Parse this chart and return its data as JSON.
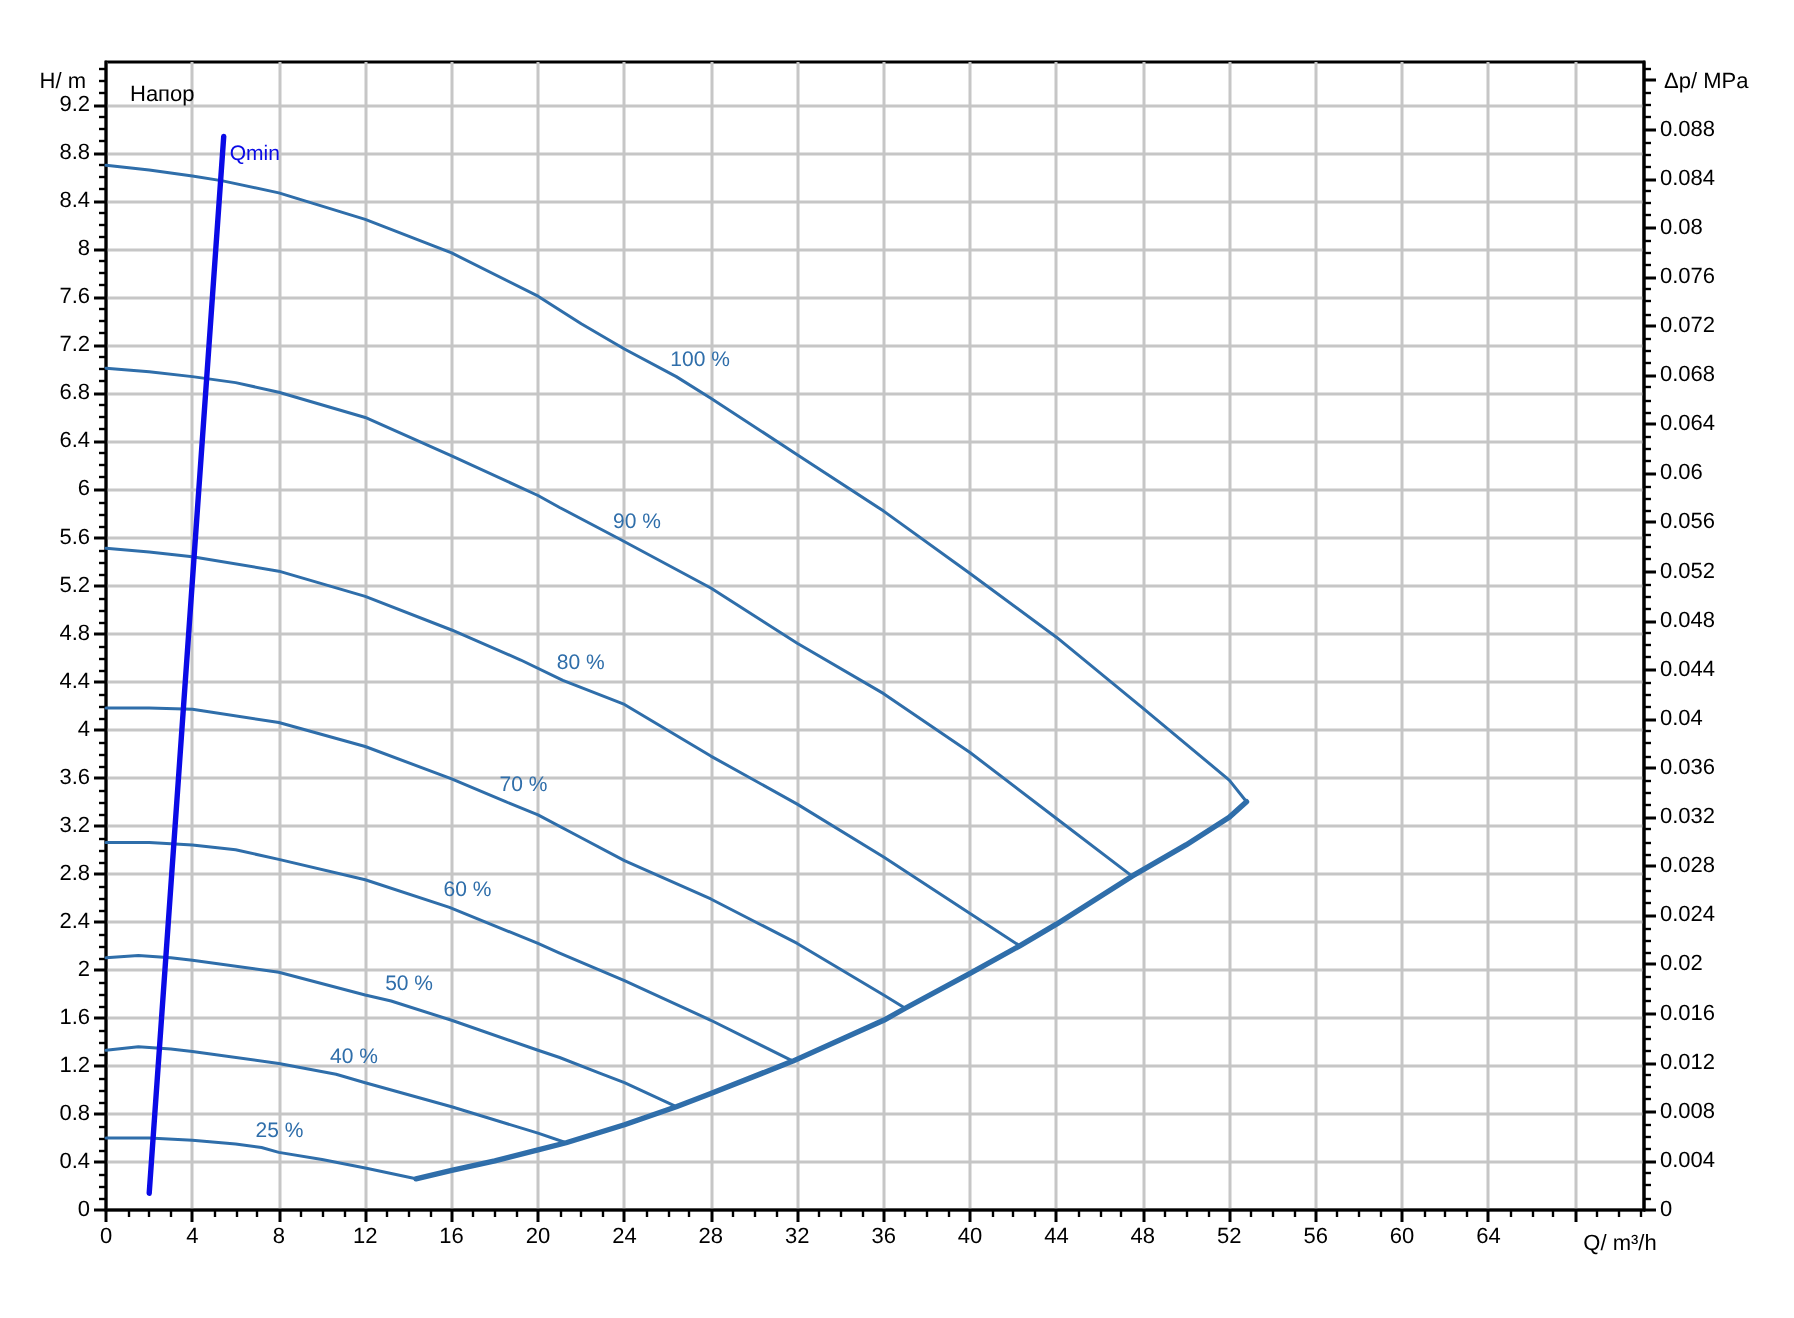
{
  "chart_data": {
    "type": "line",
    "title": "Напор",
    "xlabel": "Q/ m³/h",
    "ylabel": "H/ m",
    "y2label": "Δp/ MPa",
    "xlim": [
      0,
      71.2
    ],
    "xticks": [
      0,
      4,
      8,
      12,
      16,
      20,
      24,
      28,
      32,
      36,
      40,
      44,
      48,
      52,
      56,
      60,
      64,
      {
        "value": 68,
        "label": null
      }
    ],
    "ylim": [
      0,
      9.56
    ],
    "yticks": [
      0,
      0.4,
      0.8,
      1.2,
      1.6,
      2,
      2.4,
      2.8,
      3.2,
      3.6,
      4,
      4.4,
      4.8,
      5.2,
      5.6,
      6,
      6.4,
      6.8,
      7.2,
      7.6,
      8,
      8.4,
      8.8,
      9.2
    ],
    "y2lim": [
      0,
      0.0935
    ],
    "y2ticks": [
      0,
      0.004,
      0.008,
      0.012,
      0.016,
      0.02,
      0.024,
      0.028,
      0.032,
      0.036,
      0.04,
      0.044,
      0.048,
      0.052,
      0.056,
      0.06,
      0.064,
      0.068,
      0.072,
      0.076,
      0.08,
      0.084,
      0.088,
      {
        "value": 0.092,
        "label": null
      }
    ],
    "grid": true,
    "marker": "none",
    "series": [
      {
        "name": "100 %",
        "color": "#2f6eaa",
        "x": [
          0,
          2,
          4,
          5.4,
          8,
          12,
          16,
          20,
          22,
          24,
          26.4,
          28,
          32,
          36,
          40,
          44,
          48,
          50,
          52,
          52.8
        ],
        "values": [
          8.7,
          8.66,
          8.61,
          8.57,
          8.47,
          8.25,
          7.97,
          7.61,
          7.38,
          7.17,
          6.94,
          6.76,
          6.29,
          5.82,
          5.3,
          4.77,
          4.18,
          3.88,
          3.58,
          3.4
        ]
      },
      {
        "name": "90 %",
        "color": "#2f6eaa",
        "x": [
          0,
          2,
          4,
          6,
          8,
          12,
          16,
          20,
          21,
          23.75,
          28,
          32,
          36,
          40,
          44,
          47.5
        ],
        "values": [
          7.01,
          6.98,
          6.94,
          6.89,
          6.81,
          6.6,
          6.28,
          5.95,
          5.85,
          5.59,
          5.18,
          4.72,
          4.3,
          3.81,
          3.26,
          2.78
        ]
      },
      {
        "name": "80 %",
        "color": "#2f6eaa",
        "x": [
          0,
          2,
          4,
          8,
          12,
          16,
          19.2,
          21.15,
          24,
          28,
          32,
          36,
          40,
          42.3
        ],
        "values": [
          5.51,
          5.48,
          5.44,
          5.32,
          5.11,
          4.83,
          4.58,
          4.41,
          4.21,
          3.78,
          3.38,
          2.94,
          2.47,
          2.2
        ]
      },
      {
        "name": "70 %",
        "color": "#2f6eaa",
        "x": [
          0,
          2,
          4,
          8,
          12,
          16,
          18.5,
          20,
          22,
          24,
          28,
          32,
          36,
          37
        ],
        "values": [
          4.18,
          4.18,
          4.17,
          4.06,
          3.86,
          3.59,
          3.4,
          3.29,
          3.1,
          2.91,
          2.59,
          2.22,
          1.79,
          1.68
        ]
      },
      {
        "name": "60 %",
        "color": "#2f6eaa",
        "x": [
          0,
          2,
          4,
          6,
          8,
          12,
          15.9,
          20,
          21,
          24,
          28,
          31.8
        ],
        "values": [
          3.06,
          3.06,
          3.04,
          3,
          2.92,
          2.75,
          2.52,
          2.22,
          2.14,
          1.91,
          1.58,
          1.24
        ]
      },
      {
        "name": "50 %",
        "color": "#2f6eaa",
        "x": [
          0,
          1.5,
          3,
          4,
          8,
          12,
          13.2,
          16,
          20,
          21,
          22.85,
          24,
          26.4
        ],
        "values": [
          2.1,
          2.12,
          2.1,
          2.08,
          1.98,
          1.79,
          1.74,
          1.58,
          1.33,
          1.27,
          1.14,
          1.06,
          0.86
        ]
      },
      {
        "name": "40 %",
        "color": "#2f6eaa",
        "x": [
          0,
          1.5,
          3,
          4,
          8,
          10.65,
          12,
          16,
          20,
          21.3
        ],
        "values": [
          1.33,
          1.36,
          1.34,
          1.32,
          1.22,
          1.13,
          1.06,
          0.86,
          0.64,
          0.56
        ]
      },
      {
        "name": "25 %",
        "color": "#2f6eaa",
        "x": [
          0,
          2,
          4,
          6,
          7.2,
          8,
          10,
          12,
          14.35
        ],
        "values": [
          0.6,
          0.6,
          0.58,
          0.55,
          0.52,
          0.48,
          0.42,
          0.35,
          0.26
        ]
      },
      {
        "color": "#2f6eaa",
        "x": [
          14.35,
          16,
          18,
          20,
          21.3,
          24,
          26.4,
          28,
          31.8,
          36,
          37,
          40,
          42.3,
          44,
          47.5,
          50,
          52,
          52.8
        ],
        "values": [
          0.26,
          0.33,
          0.41,
          0.5,
          0.56,
          0.71,
          0.86,
          0.97,
          1.24,
          1.58,
          1.68,
          1.97,
          2.2,
          2.38,
          2.78,
          3.04,
          3.27,
          3.4
        ]
      },
      {
        "name": "Qmin",
        "color": "#0a0ae6",
        "x": [
          2,
          5.45
        ],
        "values": [
          0.14,
          8.94
        ]
      }
    ]
  }
}
